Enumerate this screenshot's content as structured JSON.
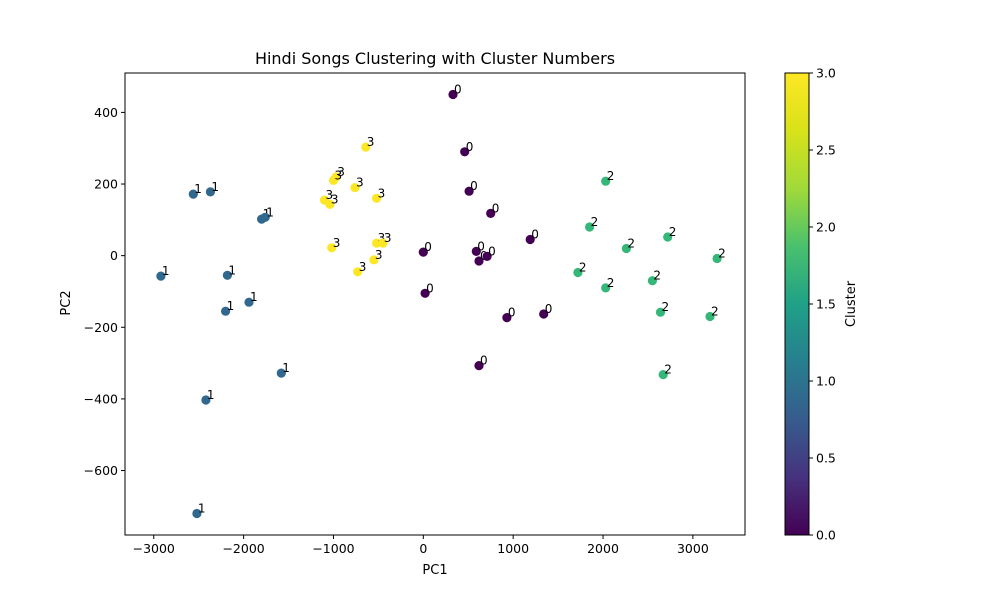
{
  "chart_data": {
    "type": "scatter",
    "title": "Hindi Songs Clustering with Cluster Numbers",
    "xlabel": "PC1",
    "ylabel": "PC2",
    "xlim": [
      -3320,
      3580
    ],
    "ylim": [
      -780,
      510
    ],
    "xticks": [
      -3000,
      -2000,
      -1000,
      0,
      1000,
      2000,
      3000
    ],
    "xtick_labels": [
      "−3000",
      "−2000",
      "−1000",
      "0",
      "1000",
      "2000",
      "3000"
    ],
    "yticks": [
      400,
      200,
      0,
      -200,
      -400,
      -600
    ],
    "ytick_labels": [
      "400",
      "200",
      "0",
      "−200",
      "−400",
      "−600"
    ],
    "grid": false,
    "colorbar": {
      "label": "Cluster",
      "colormap": "viridis",
      "range": [
        0,
        3
      ],
      "ticks": [
        0.0,
        0.5,
        1.0,
        1.5,
        2.0,
        2.5,
        3.0
      ],
      "tick_labels": [
        "0.0",
        "0.5",
        "1.0",
        "1.5",
        "2.0",
        "2.5",
        "3.0"
      ]
    },
    "cluster_colors": {
      "0": "#440154",
      "1": "#31688e",
      "2": "#35b779",
      "3": "#fde725"
    },
    "points": [
      {
        "x": 330,
        "y": 450,
        "cluster": 0
      },
      {
        "x": 460,
        "y": 290,
        "cluster": 0
      },
      {
        "x": 510,
        "y": 180,
        "cluster": 0
      },
      {
        "x": 750,
        "y": 118,
        "cluster": 0
      },
      {
        "x": 1190,
        "y": 45,
        "cluster": 0
      },
      {
        "x": 0,
        "y": 10,
        "cluster": 0
      },
      {
        "x": 590,
        "y": 12,
        "cluster": 0
      },
      {
        "x": 620,
        "y": -15,
        "cluster": 0
      },
      {
        "x": 710,
        "y": -2,
        "cluster": 0
      },
      {
        "x": 20,
        "y": -105,
        "cluster": 0
      },
      {
        "x": 930,
        "y": -173,
        "cluster": 0
      },
      {
        "x": 1340,
        "y": -163,
        "cluster": 0
      },
      {
        "x": 620,
        "y": -307,
        "cluster": 0
      },
      {
        "x": -2560,
        "y": 172,
        "cluster": 1
      },
      {
        "x": -2370,
        "y": 178,
        "cluster": 1
      },
      {
        "x": -1800,
        "y": 102,
        "cluster": 1
      },
      {
        "x": -1760,
        "y": 107,
        "cluster": 1
      },
      {
        "x": -2920,
        "y": -57,
        "cluster": 1
      },
      {
        "x": -2180,
        "y": -55,
        "cluster": 1
      },
      {
        "x": -1940,
        "y": -130,
        "cluster": 1
      },
      {
        "x": -2200,
        "y": -155,
        "cluster": 1
      },
      {
        "x": -1580,
        "y": -328,
        "cluster": 1
      },
      {
        "x": -2420,
        "y": -403,
        "cluster": 1
      },
      {
        "x": -2520,
        "y": -720,
        "cluster": 1
      },
      {
        "x": 2030,
        "y": 208,
        "cluster": 2
      },
      {
        "x": 1850,
        "y": 80,
        "cluster": 2
      },
      {
        "x": 2720,
        "y": 52,
        "cluster": 2
      },
      {
        "x": 2260,
        "y": 20,
        "cluster": 2
      },
      {
        "x": 3270,
        "y": -8,
        "cluster": 2
      },
      {
        "x": 1720,
        "y": -47,
        "cluster": 2
      },
      {
        "x": 2550,
        "y": -70,
        "cluster": 2
      },
      {
        "x": 2030,
        "y": -90,
        "cluster": 2
      },
      {
        "x": 2640,
        "y": -158,
        "cluster": 2
      },
      {
        "x": 3190,
        "y": -170,
        "cluster": 2
      },
      {
        "x": 2670,
        "y": -332,
        "cluster": 2
      },
      {
        "x": -640,
        "y": 303,
        "cluster": 3
      },
      {
        "x": -970,
        "y": 220,
        "cluster": 3
      },
      {
        "x": -1000,
        "y": 210,
        "cluster": 3
      },
      {
        "x": -760,
        "y": 190,
        "cluster": 3
      },
      {
        "x": -520,
        "y": 160,
        "cluster": 3
      },
      {
        "x": -1100,
        "y": 155,
        "cluster": 3
      },
      {
        "x": -1040,
        "y": 143,
        "cluster": 3
      },
      {
        "x": -1020,
        "y": 22,
        "cluster": 3
      },
      {
        "x": -520,
        "y": 35,
        "cluster": 3
      },
      {
        "x": -450,
        "y": 35,
        "cluster": 3
      },
      {
        "x": -550,
        "y": -12,
        "cluster": 3
      },
      {
        "x": -730,
        "y": -45,
        "cluster": 3
      }
    ]
  }
}
